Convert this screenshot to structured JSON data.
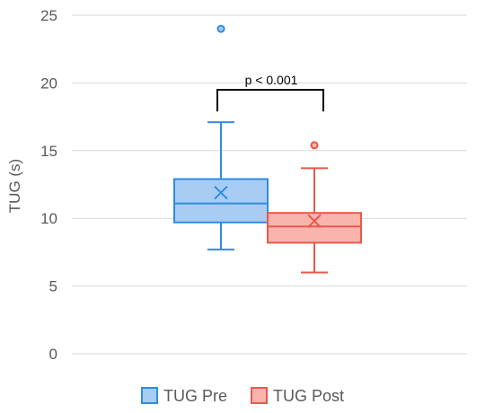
{
  "chart_data": {
    "type": "box",
    "ylabel": "TUG (s)",
    "ylim": [
      0,
      25
    ],
    "yticks": [
      0,
      5,
      10,
      15,
      20,
      25
    ],
    "grid": true,
    "legend_position": "bottom",
    "series": [
      {
        "name": "TUG Pre",
        "min": 7.7,
        "q1": 9.7,
        "median": 11.1,
        "q3": 12.9,
        "max": 17.1,
        "mean": 11.9,
        "outliers": [
          24.0
        ],
        "fill": "#a9cdf2",
        "stroke": "#2e8be6"
      },
      {
        "name": "TUG Post",
        "min": 6.0,
        "q1": 8.2,
        "median": 9.4,
        "q3": 10.4,
        "max": 13.7,
        "mean": 9.8,
        "outliers": [
          15.4
        ],
        "fill": "#f8b4ad",
        "stroke": "#e8594a"
      }
    ],
    "annotation": {
      "text": "p < 0.001"
    }
  }
}
